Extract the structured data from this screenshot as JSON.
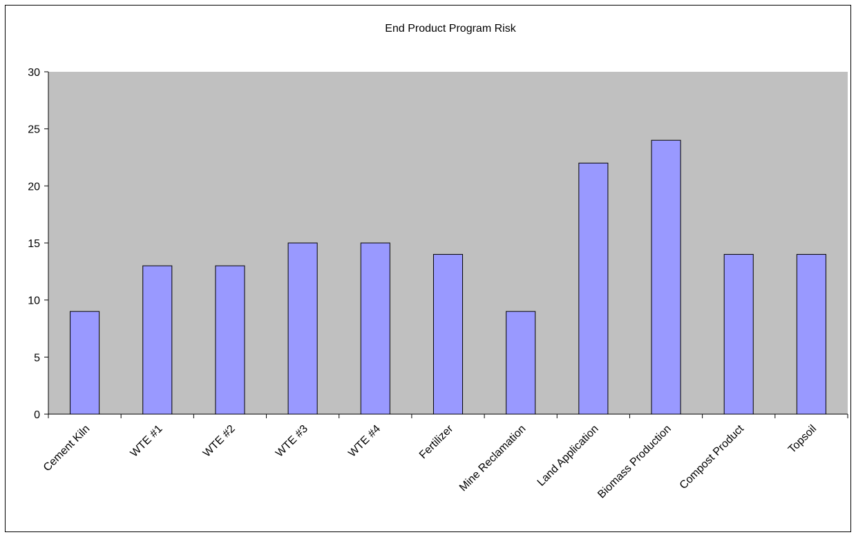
{
  "chart_data": {
    "type": "bar",
    "title": "End Product Program Risk",
    "xlabel": "",
    "ylabel": "",
    "categories": [
      "Cement Kiln",
      "WTE #1",
      "WTE #2",
      "WTE #3",
      "WTE #4",
      "Fertilizer",
      "Mine Reclamation",
      "Land Application",
      "Biomass Production",
      "Compost Product",
      "Topsoil"
    ],
    "values": [
      9,
      13,
      13,
      15,
      15,
      14,
      9,
      22,
      24,
      14,
      14
    ],
    "ylim": [
      0,
      30
    ],
    "yticks": [
      0,
      5,
      10,
      15,
      20,
      25,
      30
    ],
    "grid": false,
    "legend": "none",
    "colors": {
      "plot_background": "#c0c0c0",
      "bar_fill": "#9999ff",
      "bar_stroke": "#000000",
      "axis": "#000000"
    }
  }
}
